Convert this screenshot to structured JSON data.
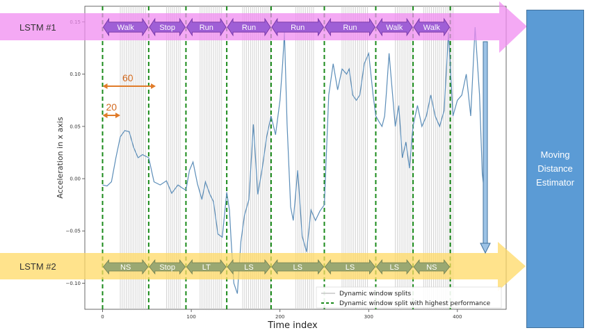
{
  "axes": {
    "xlabel": "Time index",
    "ylabel": "Acceleration in x axis",
    "xticks": [
      0,
      100,
      200,
      300,
      400
    ],
    "yticks": [
      -0.1,
      -0.05,
      0.0,
      0.05,
      0.1,
      0.15
    ],
    "xlim": [
      -20,
      455
    ],
    "ylim": [
      -0.125,
      0.165
    ]
  },
  "bands": {
    "top": {
      "label": "LSTM #1",
      "color": "#f08cf0"
    },
    "bottom": {
      "label": "LSTM #2",
      "color": "#ffd966"
    }
  },
  "top_segments": [
    {
      "label": "Walk",
      "from": 0,
      "to": 52
    },
    {
      "label": "Stop",
      "from": 52,
      "to": 94
    },
    {
      "label": "Run",
      "from": 94,
      "to": 140
    },
    {
      "label": "Run",
      "from": 140,
      "to": 190
    },
    {
      "label": "Run",
      "from": 190,
      "to": 250
    },
    {
      "label": "Run",
      "from": 250,
      "to": 308
    },
    {
      "label": "Walk",
      "from": 308,
      "to": 350
    },
    {
      "label": "Walk",
      "from": 350,
      "to": 392
    }
  ],
  "bottom_segments": [
    {
      "label": "NS",
      "from": 0,
      "to": 52
    },
    {
      "label": "Stop",
      "from": 52,
      "to": 94
    },
    {
      "label": "LT",
      "from": 94,
      "to": 140
    },
    {
      "label": "LS",
      "from": 140,
      "to": 190
    },
    {
      "label": "LS",
      "from": 190,
      "to": 250
    },
    {
      "label": "LS",
      "from": 250,
      "to": 308
    },
    {
      "label": "LS",
      "from": 308,
      "to": 350
    },
    {
      "label": "NS",
      "from": 350,
      "to": 392
    }
  ],
  "dimensions": [
    {
      "label": "60",
      "from": 0,
      "to": 60
    },
    {
      "label": "20",
      "from": 0,
      "to": 20
    }
  ],
  "legend": {
    "gray_label": "Dynamic window splits",
    "green_label": "Dynamic window split with highest performance"
  },
  "estimator": {
    "label": "Moving\nDistance\nEstimator"
  },
  "chart_data": {
    "type": "line",
    "xlabel": "Time index",
    "ylabel": "Acceleration in x axis",
    "xlim": [
      -20,
      455
    ],
    "ylim": [
      -0.125,
      0.165
    ],
    "green_splits": [
      0,
      52,
      94,
      140,
      190,
      250,
      308,
      350,
      392
    ],
    "gray_split_groups": [
      [
        20,
        50
      ],
      [
        72,
        88
      ],
      [
        110,
        135
      ],
      [
        158,
        190
      ],
      [
        218,
        238
      ],
      [
        270,
        300
      ],
      [
        330,
        350
      ],
      [
        362,
        395
      ]
    ],
    "series": [
      {
        "x": [
          0,
          5,
          10,
          15,
          20,
          25,
          30,
          35,
          40,
          45,
          52,
          58,
          65,
          72,
          78,
          85,
          90,
          94,
          98,
          102,
          107,
          112,
          116,
          121,
          125,
          130,
          135,
          140,
          143,
          145,
          148,
          152,
          156,
          160,
          165,
          170,
          175,
          180,
          185,
          190,
          195,
          200,
          203,
          205,
          208,
          212,
          215,
          220,
          225,
          230,
          235,
          240,
          245,
          250,
          255,
          260,
          265,
          270,
          275,
          278,
          282,
          286,
          290,
          295,
          300,
          305,
          308,
          312,
          315,
          318,
          320,
          323,
          326,
          330,
          334,
          338,
          342,
          346,
          350,
          355,
          360,
          365,
          370,
          375,
          380,
          385,
          390,
          395,
          400,
          405,
          410,
          415,
          420,
          425,
          428,
          430
        ],
        "y": [
          -0.006,
          -0.007,
          -0.003,
          0.02,
          0.04,
          0.046,
          0.045,
          0.03,
          0.02,
          0.023,
          0.02,
          -0.003,
          -0.006,
          -0.002,
          -0.014,
          -0.006,
          -0.009,
          -0.011,
          0.008,
          0.016,
          -0.005,
          -0.02,
          -0.003,
          -0.015,
          -0.022,
          -0.053,
          -0.056,
          -0.013,
          -0.03,
          -0.06,
          -0.1,
          -0.11,
          -0.06,
          -0.035,
          -0.02,
          0.052,
          -0.015,
          0.01,
          0.04,
          0.06,
          0.042,
          0.075,
          0.11,
          0.14,
          0.052,
          -0.027,
          -0.04,
          0.008,
          -0.055,
          -0.07,
          -0.03,
          -0.04,
          -0.031,
          -0.025,
          0.08,
          0.11,
          0.085,
          0.105,
          0.1,
          0.105,
          0.08,
          0.075,
          0.08,
          0.11,
          0.12,
          0.08,
          0.06,
          0.054,
          0.05,
          0.06,
          0.083,
          0.12,
          0.09,
          0.05,
          0.07,
          0.02,
          0.035,
          0.01,
          0.05,
          0.07,
          0.05,
          0.06,
          0.08,
          0.06,
          0.05,
          0.065,
          0.14,
          0.06,
          0.075,
          0.08,
          0.1,
          0.06,
          0.145,
          0.08,
          0.005,
          -0.01
        ]
      }
    ]
  }
}
